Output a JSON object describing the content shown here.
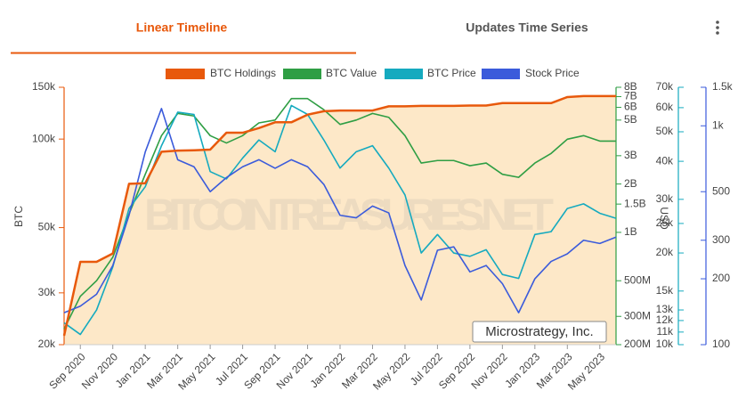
{
  "tabs": [
    "Linear Timeline",
    "Updates Time Series"
  ],
  "chart_data": {
    "type": "line",
    "ylabel": "BTC",
    "y2label": "USD",
    "watermark": "BITCOINTREASURIES.NET",
    "annotation": "Microstrategy, Inc.",
    "log_scale": true,
    "area_series": 0,
    "x": [
      "2020-08",
      "2020-09",
      "2020-10",
      "2020-11",
      "2020-12",
      "2021-01",
      "2021-02",
      "2021-03",
      "2021-04",
      "2021-05",
      "2021-06",
      "2021-07",
      "2021-08",
      "2021-09",
      "2021-10",
      "2021-11",
      "2021-12",
      "2022-01",
      "2022-02",
      "2022-03",
      "2022-04",
      "2022-05",
      "2022-06",
      "2022-07",
      "2022-08",
      "2022-09",
      "2022-10",
      "2022-11",
      "2022-12",
      "2023-01",
      "2023-02",
      "2023-03",
      "2023-04",
      "2023-05",
      "2023-06"
    ],
    "xlim": [
      "2020-08",
      "2023-06"
    ],
    "xticks": [
      {
        "value": "2020-09",
        "label": "Sep 2020"
      },
      {
        "value": "2020-11",
        "label": "Nov 2020"
      },
      {
        "value": "2021-01",
        "label": "Jan 2021"
      },
      {
        "value": "2021-03",
        "label": "Mar 2021"
      },
      {
        "value": "2021-05",
        "label": "May 2021"
      },
      {
        "value": "2021-07",
        "label": "Jul 2021"
      },
      {
        "value": "2021-09",
        "label": "Sep 2021"
      },
      {
        "value": "2021-11",
        "label": "Nov 2021"
      },
      {
        "value": "2022-01",
        "label": "Jan 2022"
      },
      {
        "value": "2022-03",
        "label": "Mar 2022"
      },
      {
        "value": "2022-05",
        "label": "May 2022"
      },
      {
        "value": "2022-07",
        "label": "Jul 2022"
      },
      {
        "value": "2022-09",
        "label": "Sep 2022"
      },
      {
        "value": "2022-11",
        "label": "Nov 2022"
      },
      {
        "value": "2023-01",
        "label": "Jan 2023"
      },
      {
        "value": "2023-03",
        "label": "Mar 2023"
      },
      {
        "value": "2023-05",
        "label": "May 2023"
      }
    ],
    "ylim": [
      20000,
      150000
    ],
    "yticks": [
      {
        "value": 20000,
        "label": "20k"
      },
      {
        "value": 30000,
        "label": "30k"
      },
      {
        "value": 50000,
        "label": "50k"
      },
      {
        "value": 100000,
        "label": "100k"
      },
      {
        "value": 150000,
        "label": "150k"
      }
    ],
    "y2lim": [
      200000000,
      8000000000
    ],
    "y2ticks": [
      {
        "value": 200000000,
        "label": "200M"
      },
      {
        "value": 300000000,
        "label": "300M"
      },
      {
        "value": 500000000,
        "label": "500M"
      },
      {
        "value": 1000000000,
        "label": "1B"
      },
      {
        "value": 1500000000,
        "label": "1.5B"
      },
      {
        "value": 2000000000,
        "label": "2B"
      },
      {
        "value": 3000000000,
        "label": "3B"
      },
      {
        "value": 5000000000,
        "label": "5B"
      },
      {
        "value": 6000000000,
        "label": "6B"
      },
      {
        "value": 7000000000,
        "label": "7B"
      },
      {
        "value": 8000000000,
        "label": "8B"
      }
    ],
    "y3lim": [
      10000,
      70000
    ],
    "y3ticks": [
      {
        "value": 10000,
        "label": "10k"
      },
      {
        "value": 11000,
        "label": "11k"
      },
      {
        "value": 12000,
        "label": "12k"
      },
      {
        "value": 13000,
        "label": "13k"
      },
      {
        "value": 15000,
        "label": "15k"
      },
      {
        "value": 20000,
        "label": "20k"
      },
      {
        "value": 25000,
        "label": "25k"
      },
      {
        "value": 30000,
        "label": "30k"
      },
      {
        "value": 40000,
        "label": "40k"
      },
      {
        "value": 50000,
        "label": "50k"
      },
      {
        "value": 60000,
        "label": "60k"
      },
      {
        "value": 70000,
        "label": "70k"
      }
    ],
    "y4lim": [
      100,
      1500
    ],
    "y4ticks": [
      100,
      200,
      300,
      500,
      {
        "value": 1000,
        "label": "1k"
      },
      {
        "value": 1500,
        "label": "1.5k"
      }
    ],
    "series": [
      {
        "name": "BTC Holdings",
        "color": "#e8590c",
        "axis": "y",
        "values": [
          21454,
          38250,
          38250,
          40824,
          70470,
          70784,
          90531,
          91326,
          91579,
          92079,
          105085,
          105085,
          108992,
          114042,
          114042,
          121044,
          124391,
          125051,
          125051,
          125051,
          129218,
          129218,
          129699,
          129699,
          129699,
          130000,
          130000,
          132500,
          132500,
          132500,
          132500,
          138955,
          140000,
          140000,
          140000
        ]
      },
      {
        "name": "BTC Value",
        "color": "#2f9e44",
        "axis": "y2",
        "values": [
          250000000,
          400000000,
          500000000,
          700000000,
          1300000000,
          2300000000,
          4000000000,
          5500000000,
          5300000000,
          4000000000,
          3600000000,
          4000000000,
          4800000000,
          5000000000,
          6800000000,
          6800000000,
          5800000000,
          4700000000,
          5000000000,
          5500000000,
          5200000000,
          4000000000,
          2700000000,
          2800000000,
          2800000000,
          2600000000,
          2700000000,
          2300000000,
          2200000000,
          2700000000,
          3100000000,
          3800000000,
          4000000000,
          3700000000,
          3700000000
        ]
      },
      {
        "name": "BTC Price",
        "color": "#15aabf",
        "axis": "y3",
        "values": [
          11800,
          10800,
          13000,
          18000,
          28000,
          33000,
          45000,
          58000,
          57000,
          37000,
          35000,
          41000,
          47000,
          43000,
          61000,
          57000,
          47000,
          38000,
          43000,
          45000,
          38000,
          31000,
          20000,
          23000,
          20000,
          19500,
          20500,
          17000,
          16500,
          23000,
          23500,
          28000,
          29000,
          27000,
          26000
        ]
      },
      {
        "name": "Stock Price",
        "color": "#3b5bdb",
        "axis": "y4",
        "values": [
          140,
          150,
          170,
          230,
          390,
          760,
          1200,
          700,
          650,
          500,
          580,
          650,
          700,
          640,
          700,
          650,
          540,
          390,
          380,
          430,
          400,
          230,
          160,
          270,
          280,
          215,
          230,
          190,
          140,
          200,
          240,
          260,
          300,
          290,
          310
        ]
      }
    ]
  }
}
